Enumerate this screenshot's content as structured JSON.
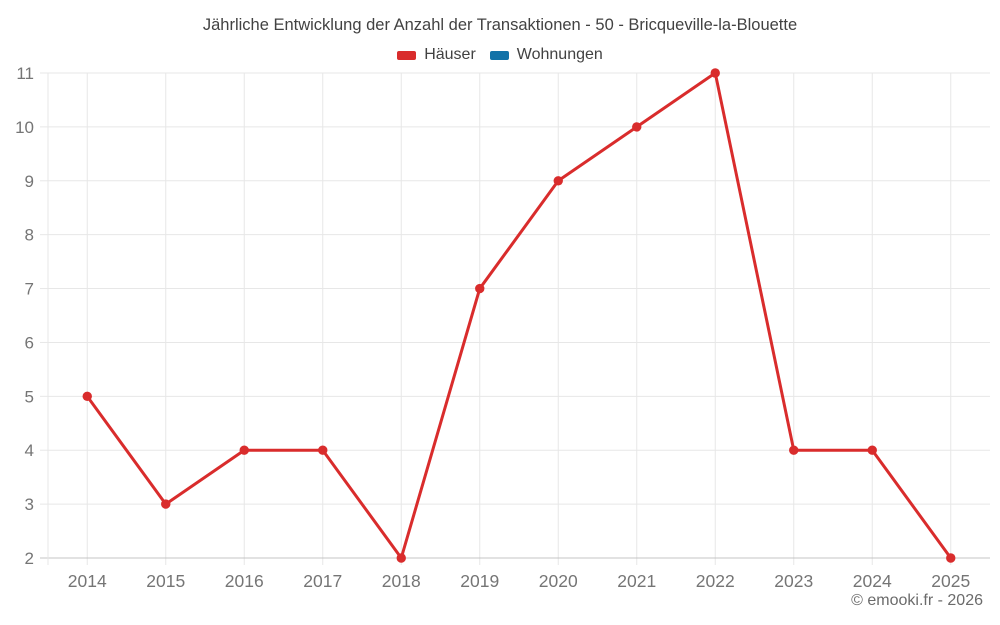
{
  "header": {
    "title": "Jährliche Entwicklung der Anzahl der Transaktionen - 50 - Bricqueville-la-Blouette"
  },
  "footer": {
    "credit": "© emooki.fr - 2026"
  },
  "theme": {
    "grid_color": "#e7e7e7",
    "axis_color": "#c4c4c4",
    "tick_label_color": "#757575",
    "title_color": "#424242",
    "background": "#ffffff",
    "series_red": "#d92c2c",
    "series_blue": "#1272a8"
  },
  "chart_data": {
    "type": "line",
    "title": "Jährliche Entwicklung der Anzahl der Transaktionen - 50 - Bricqueville-la-Blouette",
    "categories": [
      "2014",
      "2015",
      "2016",
      "2017",
      "2018",
      "2019",
      "2020",
      "2021",
      "2022",
      "2023",
      "2024",
      "2025"
    ],
    "series": [
      {
        "name": "Häuser",
        "color": "#d92c2c",
        "values": [
          5,
          3,
          4,
          4,
          2,
          7,
          9,
          10,
          11,
          4,
          4,
          2
        ]
      },
      {
        "name": "Wohnungen",
        "color": "#1272a8",
        "values": []
      }
    ],
    "xlabel": "",
    "ylabel": "",
    "ylim": [
      2,
      11
    ],
    "yticks": [
      2,
      3,
      4,
      5,
      6,
      7,
      8,
      9,
      10,
      11
    ],
    "grid": true,
    "legend_position": "top",
    "marker": "circle"
  }
}
